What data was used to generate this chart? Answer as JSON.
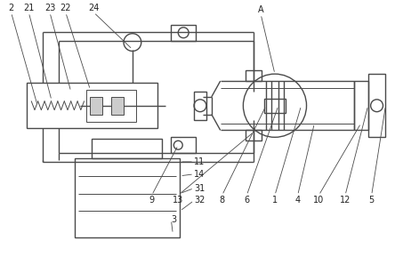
{
  "bg_color": "#ffffff",
  "line_color": "#4a4a4a",
  "lw": 1.0,
  "thin_lw": 0.7,
  "figsize": [
    4.44,
    2.98
  ],
  "dpi": 100,
  "label_fs": 7.0,
  "label_color": "#222222"
}
